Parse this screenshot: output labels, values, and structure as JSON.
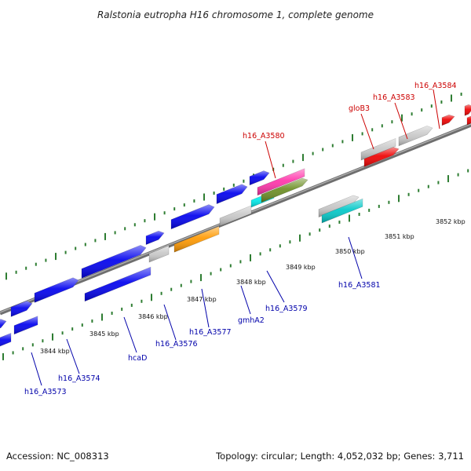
{
  "title": "Ralstonia eutropha H16 chromosome 1, complete genome",
  "footer": {
    "accession": "Accession: NC_008313",
    "summary": "Topology: circular; Length: 4,052,032 bp; Genes: 3,711"
  },
  "colors": {
    "backbone": "#8c8c8c",
    "tick": "#2e7d32",
    "forward_label": "#cc0000",
    "reverse_label": "#0000aa"
  },
  "chart_data": {
    "type": "genome-map",
    "kbp_labels": [
      "3844 kbp",
      "3845 kbp",
      "3846 kbp",
      "3847 kbp",
      "3848 kbp",
      "3849 kbp",
      "3850 kbp",
      "3851 kbp",
      "3852 kbp"
    ],
    "features": [
      {
        "id": "f1",
        "color": "#0000ee"
      },
      {
        "id": "f2",
        "color": "#0000ee"
      },
      {
        "id": "f3",
        "color": "#0000ee"
      },
      {
        "id": "f4",
        "color": "#0000ee"
      },
      {
        "id": "f5",
        "color": "#0000ee"
      },
      {
        "id": "f6",
        "color": "#0000ee"
      },
      {
        "id": "f7",
        "color": "#0000ee"
      },
      {
        "id": "f8",
        "color": "#0000ee"
      },
      {
        "id": "f9",
        "color": "#0000ee"
      },
      {
        "id": "f10",
        "color": "#0000ee"
      },
      {
        "id": "f11",
        "color": "#0000ee"
      },
      {
        "id": "f12",
        "color": "#c8c8c8"
      },
      {
        "id": "f13",
        "color": "#ff9900"
      },
      {
        "id": "f14",
        "color": "#c8c8c8"
      },
      {
        "id": "f15",
        "color": "#00eeee"
      },
      {
        "id": "f16",
        "color": "#c8c8c8"
      },
      {
        "id": "f17",
        "color": "#00c8c8"
      },
      {
        "id": "f18",
        "color": "#ff33aa"
      },
      {
        "id": "f19",
        "color": "#6b8e23"
      },
      {
        "id": "f20",
        "color": "#c8c8c8"
      },
      {
        "id": "f21",
        "color": "#ee0000"
      },
      {
        "id": "f22",
        "color": "#c8c8c8"
      },
      {
        "id": "f23",
        "color": "#ee0000"
      },
      {
        "id": "f24",
        "color": "#ee0000"
      },
      {
        "id": "f25",
        "color": "#ee0000"
      },
      {
        "id": "f26",
        "color": "#0000ee"
      },
      {
        "id": "f27",
        "color": "#555599"
      }
    ],
    "labels": [
      {
        "text": "h16_A3584",
        "strand": "forward"
      },
      {
        "text": "h16_A3583",
        "strand": "forward"
      },
      {
        "text": "gloB3",
        "strand": "forward"
      },
      {
        "text": "h16_A3580",
        "strand": "forward"
      },
      {
        "text": "h16_A3581",
        "strand": "reverse"
      },
      {
        "text": "h16_A3579",
        "strand": "reverse"
      },
      {
        "text": "gmhA2",
        "strand": "reverse"
      },
      {
        "text": "h16_A3577",
        "strand": "reverse"
      },
      {
        "text": "h16_A3576",
        "strand": "reverse"
      },
      {
        "text": "hcaD",
        "strand": "reverse"
      },
      {
        "text": "h16_A3574",
        "strand": "reverse"
      },
      {
        "text": "h16_A3573",
        "strand": "reverse"
      }
    ]
  }
}
